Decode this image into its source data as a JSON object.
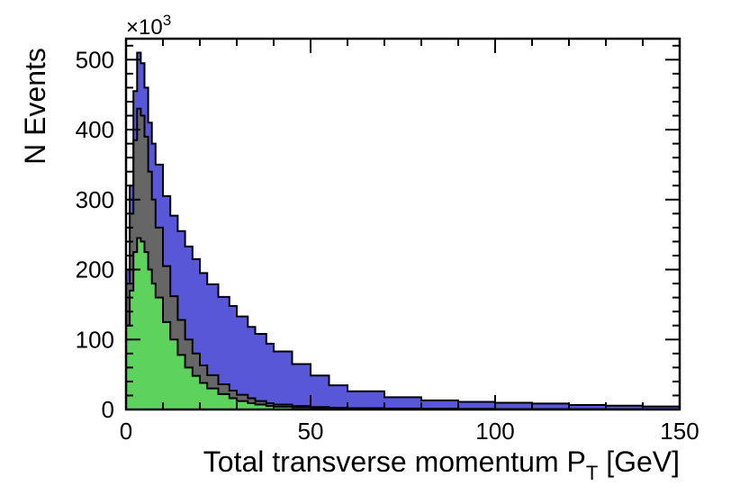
{
  "chart_data": {
    "type": "area",
    "xlabel": "Total transverse momentum P",
    "xlabel_subscript": "T",
    "xlabel_unit": "[GeV]",
    "ylabel": "N Events",
    "y_multiplier_label": "×10",
    "y_multiplier_exponent": "3",
    "xlim": [
      0,
      150
    ],
    "ylim": [
      0,
      530
    ],
    "x_ticks": [
      0,
      50,
      100,
      150
    ],
    "y_ticks": [
      0,
      100,
      200,
      300,
      400,
      500
    ],
    "grid": false,
    "stacked": true,
    "x": [
      0,
      1,
      2,
      3,
      4,
      5,
      6,
      7,
      8,
      10,
      12,
      14,
      16,
      18,
      20,
      22,
      25,
      28,
      30,
      33,
      35,
      38,
      40,
      45,
      50,
      55,
      60,
      70,
      80,
      90,
      100,
      110,
      120,
      130,
      140,
      150
    ],
    "series": [
      {
        "color": "#5dd35d",
        "values": [
          120,
          170,
          225,
          245,
          240,
          225,
          200,
          180,
          160,
          125,
          100,
          78,
          60,
          48,
          38,
          30,
          22,
          16,
          12,
          9,
          7,
          5,
          4,
          3,
          2,
          1.5,
          1,
          0.8,
          0.6,
          0.5,
          0.4,
          0.3,
          0.3,
          0.2,
          0.2,
          0.1
        ]
      },
      {
        "color": "#666666",
        "values": [
          60,
          110,
          160,
          185,
          180,
          165,
          140,
          120,
          100,
          80,
          62,
          50,
          40,
          32,
          25,
          19,
          14,
          11,
          9,
          7,
          5,
          4,
          3,
          2,
          1.5,
          1,
          1,
          0.7,
          0.5,
          0.4,
          0.3,
          0.3,
          0.2,
          0.2,
          0.1,
          0.1
        ]
      },
      {
        "color": "#5757d8",
        "values": [
          20,
          40,
          70,
          80,
          75,
          70,
          70,
          80,
          90,
          100,
          115,
          127,
          133,
          135,
          132,
          130,
          125,
          121,
          112,
          102,
          96,
          85,
          76,
          60,
          45,
          32,
          24,
          16,
          12,
          10,
          9,
          8,
          6,
          5,
          4,
          3
        ]
      }
    ]
  }
}
